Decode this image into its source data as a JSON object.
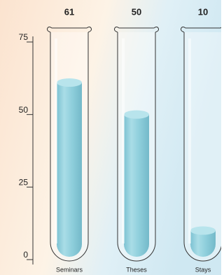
{
  "chart_data": {
    "type": "bar",
    "categories": [
      "Seminars",
      "Theses",
      "Stays"
    ],
    "values": [
      61,
      50,
      10
    ],
    "color": "#8fcfdc",
    "ylim": [
      0,
      75
    ],
    "yticks": [
      0,
      25,
      50,
      75
    ]
  }
}
